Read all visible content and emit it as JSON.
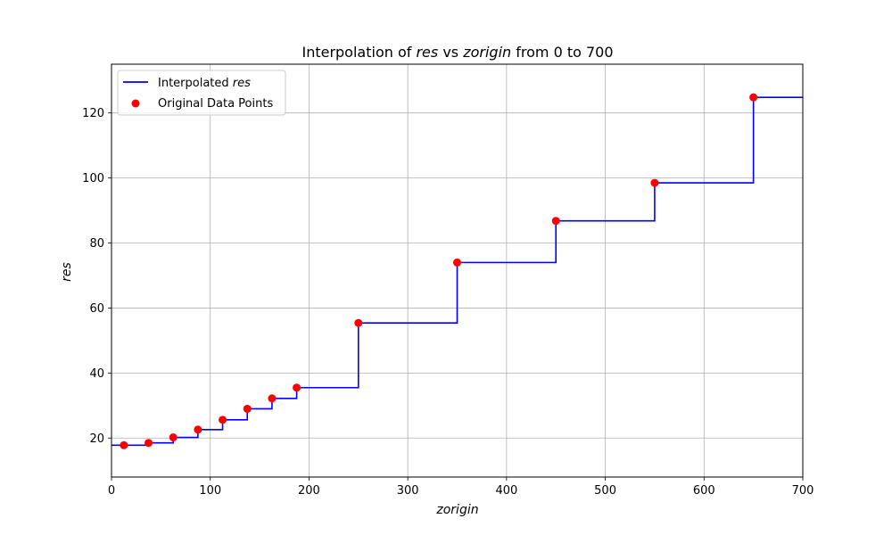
{
  "chart_data": {
    "type": "line",
    "title": {
      "prefix": "Interpolation of ",
      "var1": "res",
      "mid": " vs ",
      "var2": "zorigin",
      "suffix": " from 0 to 700"
    },
    "xlabel": "zorigin",
    "ylabel": "res",
    "xlim": [
      0,
      700
    ],
    "ylim": [
      8,
      135
    ],
    "xticks": [
      0,
      100,
      200,
      300,
      400,
      500,
      600,
      700
    ],
    "yticks": [
      20,
      40,
      60,
      80,
      100,
      120
    ],
    "grid": true,
    "legend_placement": "top-left",
    "series": [
      {
        "name": "Interpolated",
        "name_italic": "res",
        "kind": "step",
        "color": "#0000ff",
        "x": [
          0,
          12.5,
          37.5,
          62.5,
          87.5,
          112.5,
          137.5,
          162.5,
          187.5,
          250,
          350,
          450,
          550,
          650,
          700
        ],
        "y": [
          17.8,
          17.8,
          18.5,
          20.2,
          22.6,
          25.6,
          29.0,
          32.2,
          35.5,
          55.4,
          74.0,
          86.8,
          98.5,
          124.8,
          124.8
        ]
      },
      {
        "name": "Original Data Points",
        "kind": "scatter",
        "color": "#ff0000",
        "x": [
          12.5,
          37.5,
          62.5,
          87.5,
          112.5,
          137.5,
          162.5,
          187.5,
          250,
          350,
          450,
          550,
          650
        ],
        "y": [
          17.8,
          18.5,
          20.2,
          22.6,
          25.6,
          29.0,
          32.2,
          35.5,
          55.4,
          74.0,
          86.8,
          98.5,
          124.8
        ]
      }
    ]
  }
}
